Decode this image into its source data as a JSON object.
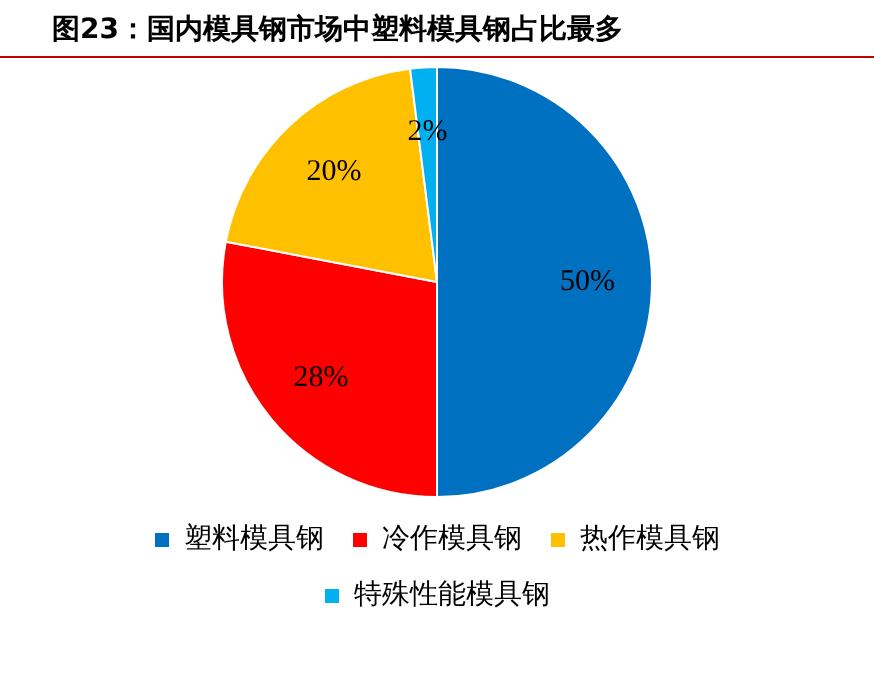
{
  "chart_data": {
    "type": "pie",
    "title": "图23：国内模具钢市场中塑料模具钢占比最多",
    "categories": [
      "塑料模具钢",
      "冷作模具钢",
      "热作模具钢",
      "特殊性能模具钢"
    ],
    "values": [
      50,
      28,
      20,
      2
    ],
    "colors": [
      "#0070c0",
      "#ff0000",
      "#ffc000",
      "#00b0f0"
    ],
    "value_labels": [
      "50%",
      "28%",
      "20%",
      "2%"
    ],
    "legend": "bottom"
  }
}
